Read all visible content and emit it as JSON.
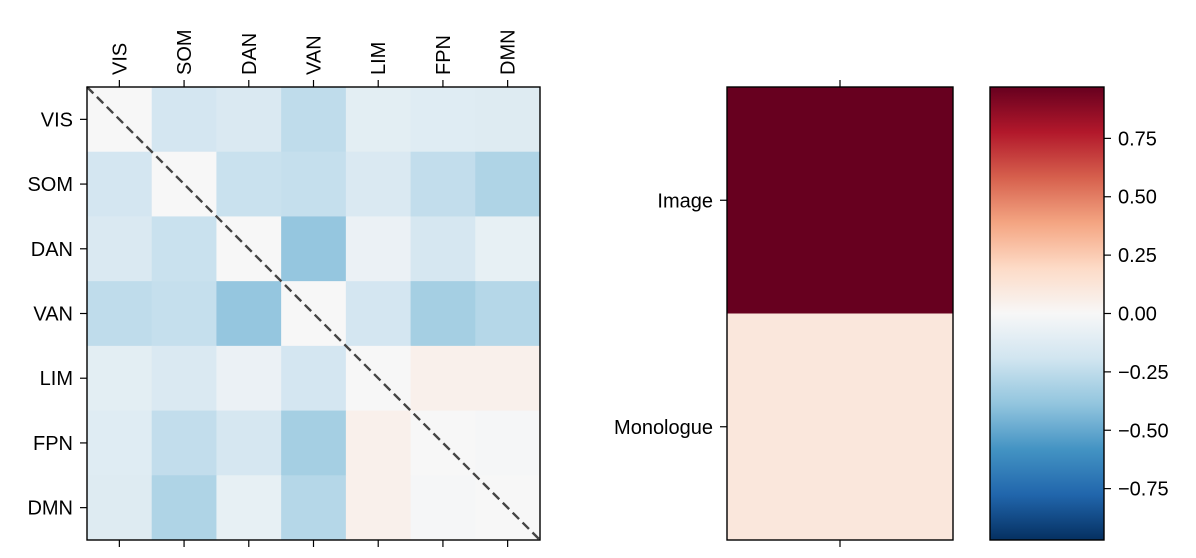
{
  "chart_data": [
    {
      "type": "heatmap",
      "rows": [
        "VIS",
        "SOM",
        "DAN",
        "VAN",
        "LIM",
        "FPN",
        "DMN"
      ],
      "columns": [
        "VIS",
        "SOM",
        "DAN",
        "VAN",
        "LIM",
        "FPN",
        "DMN"
      ],
      "values": [
        [
          0.0,
          -0.18,
          -0.15,
          -0.25,
          -0.1,
          -0.12,
          -0.13
        ],
        [
          -0.18,
          0.0,
          -0.22,
          -0.23,
          -0.15,
          -0.24,
          -0.3
        ],
        [
          -0.15,
          -0.22,
          0.0,
          -0.38,
          -0.06,
          -0.17,
          -0.08
        ],
        [
          -0.25,
          -0.23,
          -0.38,
          0.0,
          -0.18,
          -0.33,
          -0.28
        ],
        [
          -0.1,
          -0.15,
          -0.06,
          -0.18,
          0.0,
          0.05,
          0.05
        ],
        [
          -0.12,
          -0.24,
          -0.17,
          -0.33,
          0.05,
          0.0,
          -0.01
        ],
        [
          -0.13,
          -0.3,
          -0.08,
          -0.28,
          0.05,
          -0.01,
          0.0
        ]
      ],
      "diagonal_line": {
        "style": "dashed",
        "color": "#444444"
      },
      "x_tick_position": "top",
      "colormap": "RdBu_r"
    },
    {
      "type": "heatmap",
      "rows": [
        "Image",
        "Monologue"
      ],
      "columns": [
        ""
      ],
      "values": [
        [
          0.97
        ],
        [
          0.11
        ]
      ],
      "colormap": "RdBu_r"
    }
  ],
  "colorbar": {
    "range": [
      -0.97,
      0.97
    ],
    "ticks": [
      {
        "value": 0.75,
        "label": "0.75"
      },
      {
        "value": 0.5,
        "label": "0.50"
      },
      {
        "value": 0.25,
        "label": "0.25"
      },
      {
        "value": 0.0,
        "label": "0.00"
      },
      {
        "value": -0.25,
        "label": "−0.25"
      },
      {
        "value": -0.5,
        "label": "−0.50"
      },
      {
        "value": -0.75,
        "label": "−0.75"
      }
    ],
    "colormap": "RdBu_r"
  }
}
